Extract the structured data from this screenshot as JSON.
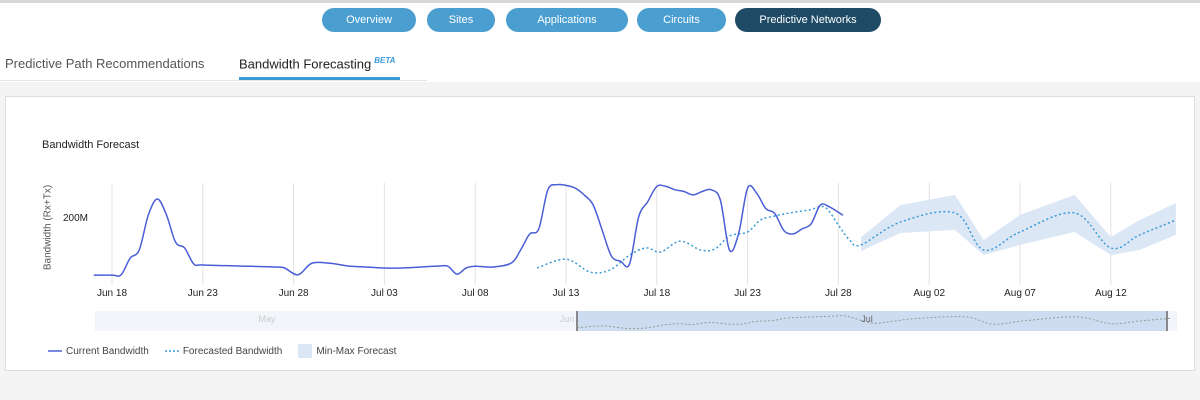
{
  "nav": {
    "buttons": [
      {
        "label": "Overview",
        "active": false
      },
      {
        "label": "Sites",
        "active": false
      },
      {
        "label": "Applications",
        "active": false
      },
      {
        "label": "Circuits",
        "active": false
      },
      {
        "label": "Predictive Networks",
        "active": true
      }
    ]
  },
  "tabs": [
    {
      "label": "Predictive Path Recommendations",
      "active": false
    },
    {
      "label": "Bandwidth Forecasting",
      "badge": "BETA",
      "active": true
    }
  ],
  "colors": {
    "accent": "#3a9ad9",
    "nav_button": "#4a9fd0",
    "nav_active": "#1e4a66",
    "current": "#4a5fd6",
    "forecast": "#3a9ad9",
    "band": "#dce7f6"
  },
  "chart_data": {
    "type": "line",
    "title": "Bandwidth Forecast",
    "ylabel": "Bandwidth (Rx+Tx)",
    "xlabel": "",
    "x_ticks": [
      "Jun 18",
      "Jun 23",
      "Jun 28",
      "Jul 03",
      "Jul 08",
      "Jul 13",
      "Jul 18",
      "Jul 23",
      "Jul 28",
      "Aug 02",
      "Aug 07",
      "Aug 12"
    ],
    "y_ticks": [
      {
        "value": 200,
        "label": "200M"
      }
    ],
    "y_unit": "M",
    "xlim": [
      "Jun 17 00:00",
      "Aug 15 14:00"
    ],
    "ylim": [
      0,
      300
    ],
    "grid": "vertical",
    "legend_position": "bottom-left",
    "series": [
      {
        "name": "Current Bandwidth",
        "style": "solid",
        "points": [
          [
            "Jun 17 00:00",
            29
          ],
          [
            "Jun 18 00:00",
            29
          ],
          [
            "Jun 18 12:00",
            30
          ],
          [
            "Jun 19 00:00",
            79
          ],
          [
            "Jun 19 12:00",
            103
          ],
          [
            "Jun 20 00:00",
            206
          ],
          [
            "Jun 20 12:00",
            253
          ],
          [
            "Jun 21 00:00",
            206
          ],
          [
            "Jun 21 12:00",
            126
          ],
          [
            "Jun 22 00:00",
            109
          ],
          [
            "Jun 22 12:00",
            62
          ],
          [
            "Jun 23 00:00",
            59
          ],
          [
            "Jun 25 00:00",
            56
          ],
          [
            "Jun 27 00:00",
            53
          ],
          [
            "Jun 27 12:00",
            50
          ],
          [
            "Jun 28 06:00",
            30
          ],
          [
            "Jun 29 00:00",
            64
          ],
          [
            "Jun 30 00:00",
            64
          ],
          [
            "Jul 01 00:00",
            56
          ],
          [
            "Jul 02 00:00",
            53
          ],
          [
            "Jul 03 00:00",
            50
          ],
          [
            "Jul 04 00:00",
            50
          ],
          [
            "Jul 05 00:00",
            53
          ],
          [
            "Jul 06 00:00",
            56
          ],
          [
            "Jul 06 12:00",
            55
          ],
          [
            "Jul 07 00:00",
            32
          ],
          [
            "Jul 07 12:00",
            50
          ],
          [
            "Jul 08 00:00",
            55
          ],
          [
            "Jul 09 00:00",
            53
          ],
          [
            "Jul 10 00:00",
            65
          ],
          [
            "Jul 10 12:00",
            103
          ],
          [
            "Jul 11 00:00",
            150
          ],
          [
            "Jul 11 12:00",
            165
          ],
          [
            "Jul 12 00:00",
            280
          ],
          [
            "Jul 12 12:00",
            295
          ],
          [
            "Jul 13 00:00",
            293
          ],
          [
            "Jul 13 12:00",
            285
          ],
          [
            "Jul 14 00:00",
            265
          ],
          [
            "Jul 14 12:00",
            235
          ],
          [
            "Jul 15 00:00",
            160
          ],
          [
            "Jul 15 12:00",
            85
          ],
          [
            "Jul 16 00:00",
            70
          ],
          [
            "Jul 16 12:00",
            62
          ],
          [
            "Jul 17 00:00",
            200
          ],
          [
            "Jul 17 12:00",
            245
          ],
          [
            "Jul 18 00:00",
            290
          ],
          [
            "Jul 18 12:00",
            290
          ],
          [
            "Jul 19 00:00",
            280
          ],
          [
            "Jul 19 12:00",
            275
          ],
          [
            "Jul 20 00:00",
            265
          ],
          [
            "Jul 20 12:00",
            275
          ],
          [
            "Jul 21 00:00",
            280
          ],
          [
            "Jul 21 12:00",
            250
          ],
          [
            "Jul 22 00:00",
            103
          ],
          [
            "Jul 22 12:00",
            150
          ],
          [
            "Jul 23 00:00",
            285
          ],
          [
            "Jul 23 12:00",
            270
          ],
          [
            "Jul 24 00:00",
            225
          ],
          [
            "Jul 24 12:00",
            210
          ],
          [
            "Jul 25 00:00",
            160
          ],
          [
            "Jul 25 12:00",
            150
          ],
          [
            "Jul 26 00:00",
            165
          ],
          [
            "Jul 26 12:00",
            180
          ],
          [
            "Jul 27 00:00",
            235
          ],
          [
            "Jul 27 12:00",
            230
          ],
          [
            "Jul 28 06:00",
            205
          ]
        ]
      },
      {
        "name": "Forecasted Bandwidth",
        "style": "dotted",
        "points": [
          [
            "Jul 11 10:00",
            50
          ],
          [
            "Jul 13 00:00",
            76
          ],
          [
            "Jul 14 08:00",
            38
          ],
          [
            "Jul 15 10:00",
            44
          ],
          [
            "Jul 16 12:00",
            88
          ],
          [
            "Jul 17 10:00",
            109
          ],
          [
            "Jul 18 05:00",
            97
          ],
          [
            "Jul 19 07:00",
            129
          ],
          [
            "Jul 20 10:00",
            103
          ],
          [
            "Jul 21 05:00",
            106
          ],
          [
            "Jul 22 00:00",
            144
          ],
          [
            "Jul 23 00:00",
            156
          ],
          [
            "Jul 23 17:00",
            191
          ],
          [
            "Jul 24 12:00",
            203
          ],
          [
            "Jul 25 08:00",
            212
          ],
          [
            "Jul 26 10:00",
            221
          ],
          [
            "Jul 27 06:00",
            229
          ],
          [
            "Jul 28 00:00",
            176
          ],
          [
            "Jul 28 15:00",
            132
          ],
          [
            "Jul 29 06:00",
            118
          ],
          [
            "Jul 31 10:00",
            185
          ],
          [
            "Aug 03 10:00",
            212
          ],
          [
            "Aug 05 00:00",
            103
          ],
          [
            "Aug 07 00:00",
            156
          ],
          [
            "Aug 10 00:00",
            212
          ],
          [
            "Aug 12 00:00",
            109
          ],
          [
            "Aug 13 14:00",
            147
          ],
          [
            "Aug 15 14:00",
            191
          ]
        ]
      },
      {
        "name": "Min-Max Forecast",
        "style": "band",
        "points": [
          [
            "Jul 29 06:00",
            100,
            141
          ],
          [
            "Jul 31 10:00",
            153,
            235
          ],
          [
            "Aug 03 10:00",
            162,
            265
          ],
          [
            "Aug 05 00:00",
            88,
            132
          ],
          [
            "Aug 07 00:00",
            118,
            206
          ],
          [
            "Aug 10 00:00",
            156,
            265
          ],
          [
            "Aug 12 00:00",
            88,
            141
          ],
          [
            "Aug 13 14:00",
            103,
            191
          ],
          [
            "Aug 15 14:00",
            147,
            241
          ]
        ]
      }
    ],
    "navigator": {
      "labels": [
        "May",
        "Jun",
        "Jul"
      ],
      "selected_range": [
        "Jun 17",
        "Aug 15"
      ]
    }
  }
}
